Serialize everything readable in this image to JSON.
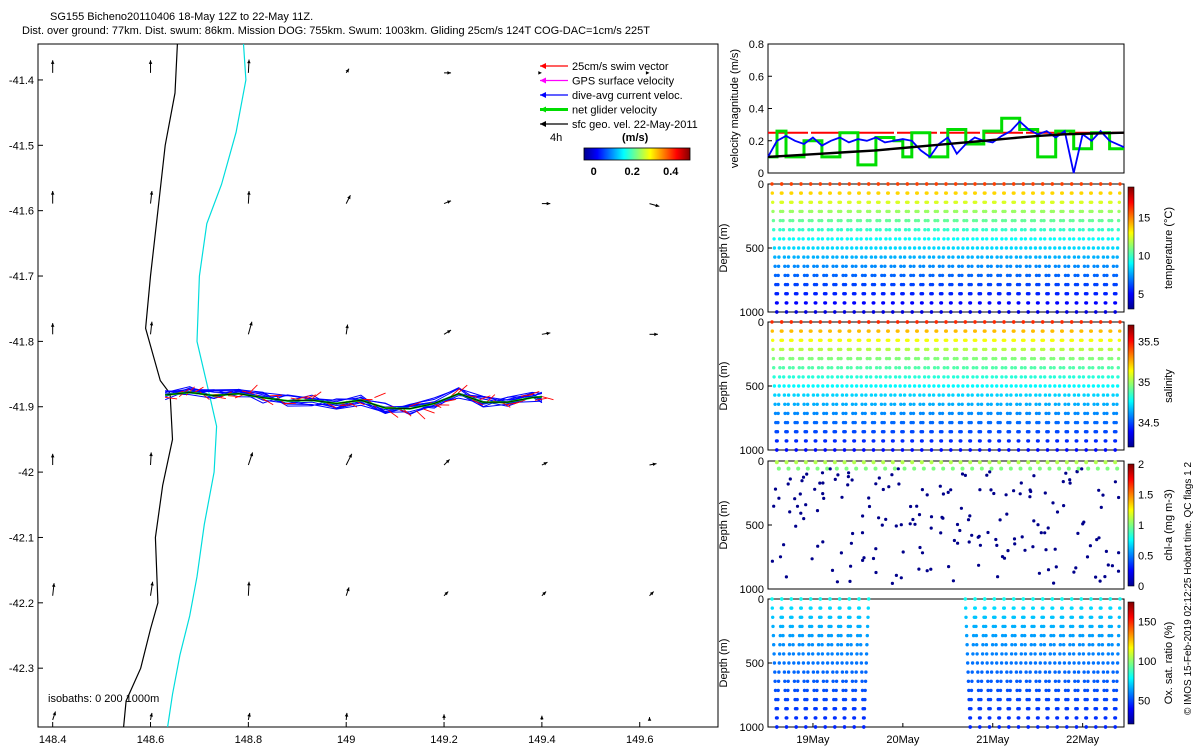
{
  "header": {
    "title": "SG155 Bicheno20110406 18-May 12Z to 22-May 11Z.",
    "subtitle": "Dist. over ground: 77km. Dist. swum: 86km. Mission DOG: 755km. Swum: 1003km. Gliding 25cm/s 124T COG-DAC=1cm/s 225T"
  },
  "chart_data": [
    {
      "type": "scatter",
      "name": "map",
      "title": "Glider track map",
      "xlim": [
        148.37,
        149.76
      ],
      "ylim": [
        -42.39,
        -41.345
      ],
      "xticks": [
        148.4,
        148.6,
        148.8,
        149,
        149.2,
        149.4,
        149.6
      ],
      "xtick_labels": [
        "148.4",
        "148.6",
        "148.8",
        "149",
        "149.2",
        "149.4",
        "149.6"
      ],
      "yticks": [
        -41.4,
        -41.5,
        -41.6,
        -41.7,
        -41.8,
        -41.9,
        -42,
        -42.1,
        -42.2,
        -42.3
      ],
      "ytick_labels": [
        "-41.4",
        "-41.5",
        "-41.6",
        "-41.7",
        "-41.8",
        "-41.9",
        "-42",
        "-42.1",
        "-42.2",
        "-42.3"
      ],
      "isobath_label": "isobaths: 0   200  1000m",
      "isobath_200": {
        "lon": [
          148.655,
          148.65,
          148.63,
          148.615,
          148.6,
          148.59,
          148.62,
          148.64,
          148.645,
          148.625,
          148.61,
          148.615,
          148.6,
          148.58,
          148.55,
          148.545
        ],
        "lat": [
          -41.345,
          -41.42,
          -41.5,
          -41.6,
          -41.7,
          -41.78,
          -41.86,
          -41.88,
          -41.95,
          -42.02,
          -42.1,
          -42.2,
          -42.24,
          -42.3,
          -42.35,
          -42.39
        ]
      },
      "isobath_1000": {
        "lon": [
          148.79,
          148.795,
          148.775,
          148.745,
          148.715,
          148.7,
          148.695,
          148.72,
          148.735,
          148.73,
          148.71,
          148.695,
          148.68,
          148.66,
          148.645,
          148.635
        ],
        "lat": [
          -41.345,
          -41.4,
          -41.48,
          -41.56,
          -41.62,
          -41.7,
          -41.8,
          -41.88,
          -41.93,
          -42.0,
          -42.08,
          -42.16,
          -42.22,
          -42.28,
          -42.34,
          -42.39
        ]
      },
      "track": {
        "lon": [
          148.63,
          148.68,
          148.73,
          148.78,
          148.83,
          148.88,
          148.93,
          148.98,
          149.03,
          149.08,
          149.13,
          149.18,
          149.23,
          149.28,
          149.33,
          149.38,
          149.4
        ],
        "lat": [
          -41.882,
          -41.878,
          -41.883,
          -41.88,
          -41.886,
          -41.891,
          -41.89,
          -41.895,
          -41.89,
          -41.902,
          -41.903,
          -41.895,
          -41.88,
          -41.893,
          -41.893,
          -41.886,
          -41.885
        ]
      },
      "arrows": {
        "lons": [
          148.4,
          148.6,
          148.8,
          149,
          149.2,
          149.4,
          149.62
        ],
        "lats": [
          -41.38,
          -41.58,
          -41.78,
          -41.98,
          -42.18,
          -42.37
        ],
        "u": [
          [
            0,
            0,
            0.05,
            0.2,
            0.5,
            0,
            0
          ],
          [
            0,
            0.1,
            0.05,
            0.3,
            0.5,
            0.6,
            0.7
          ],
          [
            0,
            0.1,
            0.25,
            0.1,
            0.5,
            0.6,
            0.6
          ],
          [
            0,
            0.05,
            0.3,
            0.4,
            0.4,
            0.4,
            0.5
          ],
          [
            0.1,
            0.15,
            0.05,
            0.2,
            0.3,
            0.3,
            0.3
          ],
          [
            0.2,
            0.1,
            0.1,
            0.05,
            0,
            0,
            0
          ]
        ],
        "v": [
          [
            0.9,
            0.9,
            0.95,
            0.3,
            0,
            0,
            0
          ],
          [
            0.9,
            0.9,
            0.9,
            0.6,
            0.2,
            0,
            -0.2
          ],
          [
            0.8,
            0.9,
            0.9,
            0.7,
            0.3,
            0.1,
            0
          ],
          [
            0.8,
            0.9,
            0.9,
            0.8,
            0.4,
            0.2,
            0.1
          ],
          [
            0.9,
            1,
            1,
            0.6,
            0.3,
            0.3,
            0.3
          ],
          [
            0.6,
            0.5,
            0.5,
            0.5,
            0.4,
            0.3,
            0.2
          ]
        ]
      },
      "legend": [
        {
          "label": "25cm/s swim vector",
          "color": "#ff0000"
        },
        {
          "label": "GPS surface velocity",
          "color": "#ff00ff"
        },
        {
          "label": "dive-avg current veloc.",
          "color": "#0000ff"
        },
        {
          "label": "net glider velocity",
          "color": "#00dd00"
        },
        {
          "label": "sfc geo. vel. 22-May-2011",
          "color": "#000000"
        }
      ],
      "colorbar": {
        "label": "(m/s)",
        "interval": "4h",
        "ticks": [
          0,
          0.2,
          0.4
        ],
        "tick_labels": [
          "0",
          "0.2",
          "0.4"
        ],
        "range": [
          -0.05,
          0.5
        ]
      }
    },
    {
      "type": "line",
      "name": "velocity",
      "ylabel": "velocity magnitude (m/s)",
      "ylim": [
        0,
        0.8
      ],
      "yticks": [
        0,
        0.2,
        0.4,
        0.6,
        0.8
      ],
      "ytick_labels": [
        "0",
        "0.2",
        "0.4",
        "0.6",
        "0.8"
      ],
      "xlim": [
        18.5,
        22.46
      ],
      "series": [
        {
          "name": "25cm/s swim vector",
          "color": "#ff0000",
          "x": [
            18.5,
            22.46
          ],
          "y": [
            0.25,
            0.25
          ]
        },
        {
          "name": "net glider velocity",
          "color": "#00dd00",
          "x": [
            18.5,
            18.6,
            18.6,
            18.7,
            18.7,
            18.9,
            18.9,
            19.1,
            19.1,
            19.3,
            19.3,
            19.5,
            19.5,
            19.7,
            19.7,
            19.9,
            19.9,
            20.0,
            20.0,
            20.1,
            20.1,
            20.3,
            20.3,
            20.5,
            20.5,
            20.7,
            20.7,
            20.9,
            20.9,
            21.1,
            21.1,
            21.3,
            21.3,
            21.5,
            21.5,
            21.7,
            21.7,
            21.9,
            21.9,
            22.1,
            22.1,
            22.3,
            22.3,
            22.46
          ],
          "y": [
            0.1,
            0.1,
            0.26,
            0.26,
            0.1,
            0.1,
            0.2,
            0.2,
            0.1,
            0.1,
            0.25,
            0.25,
            0.05,
            0.05,
            0.22,
            0.22,
            0.2,
            0.2,
            0.1,
            0.1,
            0.25,
            0.25,
            0.1,
            0.1,
            0.27,
            0.27,
            0.18,
            0.18,
            0.26,
            0.26,
            0.34,
            0.34,
            0.27,
            0.27,
            0.1,
            0.1,
            0.26,
            0.26,
            0.15,
            0.15,
            0.25,
            0.25,
            0.15,
            0.15
          ]
        },
        {
          "name": "dive-avg current veloc.",
          "color": "#0000ff",
          "x": [
            18.5,
            18.6,
            18.7,
            18.8,
            18.9,
            19.0,
            19.1,
            19.2,
            19.3,
            19.4,
            19.5,
            19.6,
            19.7,
            19.8,
            19.9,
            20.0,
            20.1,
            20.2,
            20.3,
            20.4,
            20.5,
            20.6,
            20.7,
            20.8,
            20.9,
            21.0,
            21.1,
            21.2,
            21.3,
            21.4,
            21.5,
            21.6,
            21.7,
            21.8,
            21.9,
            22.0,
            22.1,
            22.2,
            22.3,
            22.46
          ],
          "y": [
            0.1,
            0.2,
            0.23,
            0.2,
            0.18,
            0.22,
            0.17,
            0.2,
            0.22,
            0.19,
            0.21,
            0.2,
            0.22,
            0.19,
            0.2,
            0.21,
            0.2,
            0.14,
            0.1,
            0.18,
            0.22,
            0.12,
            0.18,
            0.22,
            0.2,
            0.19,
            0.23,
            0.26,
            0.32,
            0.27,
            0.24,
            0.26,
            0.22,
            0.26,
            0.0,
            0.24,
            0.2,
            0.26,
            0.2,
            0.16
          ]
        },
        {
          "name": "sfc geo. vel.",
          "color": "#000000",
          "x": [
            18.5,
            18.8,
            19.1,
            19.4,
            19.7,
            20.0,
            20.3,
            20.6,
            20.9,
            21.2,
            21.5,
            21.8,
            22.1,
            22.46
          ],
          "y": [
            0.1,
            0.11,
            0.12,
            0.13,
            0.14,
            0.155,
            0.17,
            0.185,
            0.2,
            0.215,
            0.23,
            0.24,
            0.245,
            0.25
          ]
        }
      ]
    },
    {
      "type": "scatter",
      "name": "temperature",
      "ylabel": "Depth (m)",
      "ylim": [
        1000,
        0
      ],
      "yticks": [
        0,
        500,
        1000
      ],
      "ytick_labels": [
        "0",
        "500",
        "1000"
      ],
      "colorbar": {
        "label": "temperature (°C)",
        "ticks": [
          5,
          10,
          15
        ],
        "tick_labels": [
          "5",
          "10",
          "15"
        ],
        "range": [
          3,
          19
        ]
      },
      "profile": {
        "surface_value": 16,
        "deep_value": 4.5,
        "depths": [
          0,
          1000
        ],
        "dives": 36,
        "max_depth": 1000,
        "dive_gap": []
      }
    },
    {
      "type": "scatter",
      "name": "salinity",
      "ylabel": "Depth (m)",
      "ylim": [
        1000,
        0
      ],
      "yticks": [
        0,
        500,
        1000
      ],
      "ytick_labels": [
        "0",
        "500",
        "1000"
      ],
      "colorbar": {
        "label": "salinity",
        "ticks": [
          34.5,
          35,
          35.5
        ],
        "tick_labels": [
          "34.5",
          "35",
          "35.5"
        ],
        "range": [
          34.2,
          35.7
        ]
      },
      "profile": {
        "surface_value": 35.45,
        "deep_value": 34.4,
        "depths": [
          0,
          1000
        ],
        "dives": 36,
        "max_depth": 1000,
        "dive_gap": []
      }
    },
    {
      "type": "scatter",
      "name": "chlorophyll",
      "ylabel": "Depth (m)",
      "ylim": [
        1000,
        0
      ],
      "yticks": [
        0,
        500,
        1000
      ],
      "ytick_labels": [
        "0",
        "500",
        "1000"
      ],
      "colorbar": {
        "label": "chl-a (mg m-3)",
        "ticks": [
          0,
          0.5,
          1,
          1.5,
          2
        ],
        "tick_labels": [
          "0",
          "0.5",
          "1",
          "1.5",
          "2"
        ],
        "range": [
          0,
          2
        ]
      },
      "profile": {
        "surface_value": 0.9,
        "deep_value": 0.02,
        "depths": [
          0,
          1000
        ],
        "dives": 36,
        "max_depth": 1000,
        "dive_gap": []
      }
    },
    {
      "type": "scatter",
      "name": "oxygen",
      "ylabel": "Depth (m)",
      "ylim": [
        1000,
        0
      ],
      "yticks": [
        0,
        500,
        1000
      ],
      "ytick_labels": [
        "0",
        "500",
        "1000"
      ],
      "xlim": [
        18.5,
        22.46
      ],
      "xticks": [
        19,
        20,
        21,
        22
      ],
      "xtick_labels": [
        "19May",
        "20May",
        "21May",
        "22May"
      ],
      "colorbar": {
        "label": "Ox. sat. ratio (%)",
        "ticks": [
          50,
          100,
          150
        ],
        "tick_labels": [
          "50",
          "100",
          "150"
        ],
        "range": [
          20,
          175
        ]
      },
      "profile": {
        "surface_value": 80,
        "deep_value": 45,
        "depths": [
          0,
          1000
        ],
        "dives": 36,
        "max_depth": 1000,
        "dive_gap": [
          10,
          19
        ]
      }
    }
  ],
  "credit": "© IMOS 15-Feb-2019 02:12:25 Hobart time. QC flags 1  2"
}
